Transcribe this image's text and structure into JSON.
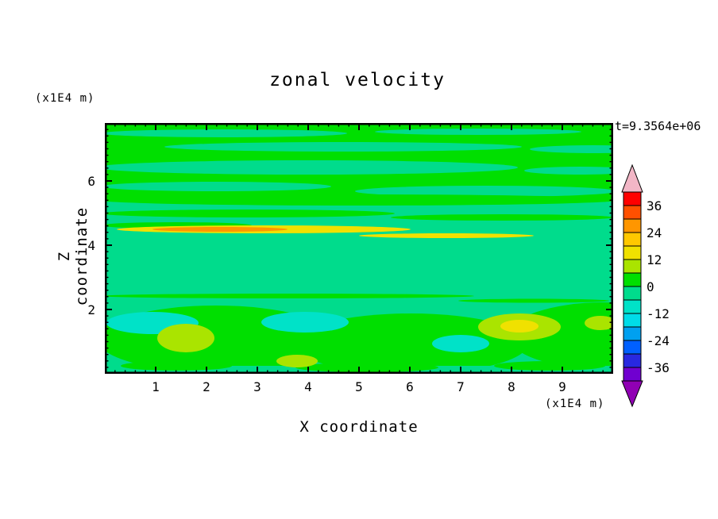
{
  "page": {
    "background": "#FFFFFF",
    "text_color": "#000000"
  },
  "chart_data": {
    "type": "heatmap",
    "title": "zonal velocity",
    "time_label": "t=9.3564e+06",
    "xlabel": "X coordinate",
    "ylabel": "Z coordinate",
    "x_units_label": "(x1E4 m)",
    "y_units_label": "(x1E4 m)",
    "xlim": [
      0,
      10
    ],
    "ylim": [
      0,
      7.8
    ],
    "x_ticks": [
      1,
      2,
      3,
      4,
      5,
      6,
      7,
      8,
      9
    ],
    "y_ticks": [
      2,
      4,
      6
    ],
    "grid": false,
    "legend_position": "right-colorbar",
    "colorbar": {
      "labels": [
        36,
        24,
        12,
        0,
        -12,
        -24,
        -36
      ],
      "level_step": 6,
      "arrow_top_color": "#F2B6C6",
      "arrow_bottom_color": "#9000B4",
      "segments": [
        {
          "min": 36,
          "max": 42,
          "color": "#FF0000"
        },
        {
          "min": 30,
          "max": 36,
          "color": "#FF5000"
        },
        {
          "min": 24,
          "max": 30,
          "color": "#FF9600"
        },
        {
          "min": 18,
          "max": 24,
          "color": "#FFC800"
        },
        {
          "min": 12,
          "max": 18,
          "color": "#F0E100"
        },
        {
          "min": 6,
          "max": 12,
          "color": "#AAE400"
        },
        {
          "min": 0,
          "max": 6,
          "color": "#00DF00"
        },
        {
          "min": -6,
          "max": 0,
          "color": "#00DC8C"
        },
        {
          "min": -12,
          "max": -6,
          "color": "#00E2C8"
        },
        {
          "min": -18,
          "max": -12,
          "color": "#00DCE8"
        },
        {
          "min": -24,
          "max": -18,
          "color": "#00A0F0"
        },
        {
          "min": -30,
          "max": -24,
          "color": "#0060FF"
        },
        {
          "min": -36,
          "max": -30,
          "color": "#2828E0"
        },
        {
          "min": -42,
          "max": -36,
          "color": "#7000D0"
        }
      ]
    },
    "field_features": [
      {
        "value_range": "-6 to 0",
        "desc": "spring-green background over most of the domain"
      },
      {
        "value_range": "0 to 6",
        "desc": "horizontal green streaks across upper half, z ~ 4.5-7.8"
      },
      {
        "value_range": "12 to 30",
        "desc": "thin yellow-orange streak near z ~ 4.6, x ~ 0.2-4, fainter yellow segment to x ~ 6.5"
      },
      {
        "value_range": "-6 to 0",
        "desc": "uniform band z ~ 2.2-3.8"
      },
      {
        "value_range": "-12 to -6",
        "desc": "cyan patches near z ~ 1.5 at x ~ 1-2, 3.5-4.5, and 6.8-7.2"
      },
      {
        "value_range": "6 to 18",
        "desc": "yellow-green blobs near z ~ 1-1.5 at x ~ 1.6-2.1, 7.5-8.8, 9.6"
      },
      {
        "value_range": "0 to 6",
        "desc": "green lobes along the bottom, z < 2"
      }
    ]
  }
}
